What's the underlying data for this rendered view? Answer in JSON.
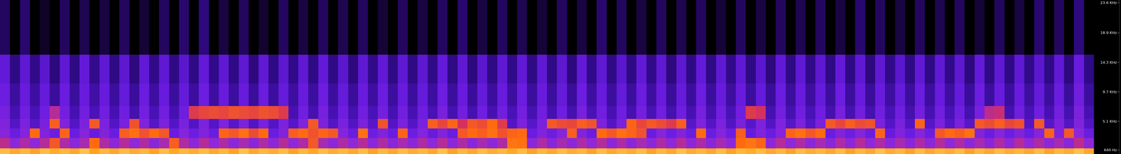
{
  "chart_data": {
    "type": "spectrogram",
    "tick_labels": "y",
    "ylim": [
      0,
      24000
    ],
    "yticks": [
      {
        "value": 23600,
        "label": "23.6 KHz"
      },
      {
        "value": 18900,
        "label": "18.9 KHz"
      },
      {
        "value": 14300,
        "label": "14.3 KHz"
      },
      {
        "value": 9700,
        "label": "9.7 KHz"
      },
      {
        "value": 5100,
        "label": "5.1 KHz"
      },
      {
        "value": 640,
        "label": "640 Hz"
      }
    ],
    "zlim": [
      -120,
      0
    ],
    "y_bins": [
      0,
      900,
      2500,
      4000,
      5500,
      7500,
      11000,
      15500,
      24000
    ],
    "cells": [
      [
        -15,
        -19,
        -16,
        -20,
        -15,
        -18,
        -16,
        -19,
        -14,
        -20,
        -16,
        -19,
        -15,
        -18,
        -16,
        -20,
        -15,
        -19,
        -16,
        -18,
        -15,
        -19,
        -16,
        -20,
        -14,
        -19,
        -16,
        -18,
        -15,
        -20,
        -16,
        -19,
        -15,
        -18,
        -16,
        -19,
        -15,
        -20,
        -16,
        -19,
        -15,
        -18,
        -16,
        -19,
        -14,
        -20,
        -16,
        -19,
        -15,
        -18,
        -16,
        -19,
        -15,
        -20,
        -16,
        -19,
        -15,
        -18,
        -16,
        -20,
        -15,
        -19,
        -16,
        -18,
        -15,
        -20,
        -16,
        -19,
        -14,
        -18,
        -16,
        -19,
        -15,
        -20,
        -16,
        -18,
        -15,
        -19,
        -16,
        -20,
        -15,
        -18,
        -16,
        -19,
        -15,
        -20,
        -16,
        -19,
        -14,
        -18,
        -16,
        -20,
        -15,
        -19,
        -16,
        -18,
        -15,
        -20,
        -16,
        -19,
        -15,
        -18,
        -16,
        -19,
        -15,
        -20,
        -16,
        -18,
        -14,
        -19
      ],
      [
        -44,
        -52,
        -46,
        -51,
        -45,
        -33,
        -46,
        -52,
        -47,
        -30,
        -46,
        -52,
        -45,
        -51,
        -46,
        -53,
        -47,
        -32,
        -46,
        -52,
        -45,
        -51,
        -46,
        -52,
        -47,
        -53,
        -46,
        -52,
        -45,
        -51,
        -46,
        -33,
        -47,
        -52,
        -46,
        -51,
        -45,
        -52,
        -46,
        -53,
        -47,
        -52,
        -46,
        -51,
        -45,
        -52,
        -46,
        -53,
        -47,
        -52,
        -46,
        -28,
        -29,
        -52,
        -46,
        -53,
        -47,
        -52,
        -46,
        -51,
        -45,
        -52,
        -46,
        -53,
        -47,
        -52,
        -46,
        -51,
        -45,
        -52,
        -46,
        -53,
        -47,
        -52,
        -30,
        -28,
        -31,
        -52,
        -45,
        -51,
        -46,
        -52,
        -47,
        -53,
        -46,
        -52,
        -45,
        -51,
        -46,
        -52,
        -47,
        -53,
        -46,
        -52,
        -45,
        -51,
        -46,
        -52,
        -47,
        -53,
        -46,
        -52,
        -45,
        -51,
        -46,
        -52,
        -47,
        -53,
        -44,
        -52
      ],
      [
        -54,
        -65,
        -55,
        -30,
        -56,
        -64,
        -31,
        -65,
        -55,
        -66,
        -56,
        -65,
        -32,
        -29,
        -34,
        -30,
        -33,
        -65,
        -55,
        -64,
        -56,
        -65,
        -31,
        -33,
        -29,
        -35,
        -30,
        -65,
        -56,
        -32,
        -30,
        -34,
        -31,
        -33,
        -55,
        -65,
        -29,
        -64,
        -56,
        -65,
        -31,
        -64,
        -55,
        -66,
        -56,
        -65,
        -33,
        -30,
        -32,
        -29,
        -34,
        -31,
        -30,
        -65,
        -56,
        -64,
        -55,
        -32,
        -56,
        -65,
        -30,
        -33,
        -29,
        -31,
        -34,
        -65,
        -55,
        -64,
        -56,
        -65,
        -30,
        -65,
        -55,
        -64,
        -32,
        -66,
        -56,
        -65,
        -55,
        -31,
        -29,
        -33,
        -30,
        -65,
        -56,
        -64,
        -55,
        -65,
        -31,
        -66,
        -56,
        -65,
        -55,
        -64,
        -33,
        -30,
        -32,
        -29,
        -56,
        -65,
        -55,
        -64,
        -56,
        -65,
        -55,
        -31,
        -56,
        -33,
        -52,
        -65
      ],
      [
        -56,
        -75,
        -58,
        -74,
        -59,
        -32,
        -57,
        -75,
        -58,
        -33,
        -58,
        -75,
        -59,
        -34,
        -57,
        -74,
        -58,
        -75,
        -59,
        -76,
        -58,
        -75,
        -57,
        -74,
        -58,
        -76,
        -59,
        -75,
        -58,
        -74,
        -57,
        -33,
        -58,
        -75,
        -59,
        -76,
        -58,
        -74,
        -34,
        -75,
        -58,
        -75,
        -59,
        -32,
        -36,
        -31,
        -40,
        -33,
        -35,
        -30,
        -38,
        -75,
        -58,
        -74,
        -59,
        -33,
        -35,
        -36,
        -32,
        -34,
        -58,
        -75,
        -59,
        -31,
        -36,
        -33,
        -35,
        -38,
        -32,
        -74,
        -57,
        -75,
        -58,
        -76,
        -59,
        -74,
        -58,
        -75,
        -57,
        -74,
        -58,
        -75,
        -59,
        -33,
        -36,
        -32,
        -35,
        -34,
        -58,
        -75,
        -59,
        -76,
        -31,
        -74,
        -58,
        -75,
        -59,
        -74,
        -33,
        -35,
        -32,
        -36,
        -34,
        -75,
        -33,
        -74,
        -58,
        -75,
        -56,
        -76
      ],
      [
        -60,
        -82,
        -62,
        -81,
        -63,
        -45,
        -61,
        -82,
        -62,
        -80,
        -62,
        -82,
        -63,
        -83,
        -61,
        -81,
        -62,
        -82,
        -63,
        -38,
        -36,
        -35,
        -36,
        -34,
        -35,
        -36,
        -34,
        -35,
        -38,
        -82,
        -62,
        -82,
        -60,
        -82,
        -63,
        -83,
        -62,
        -81,
        -61,
        -82,
        -62,
        -82,
        -63,
        -81,
        -60,
        -82,
        -62,
        -83,
        -63,
        -82,
        -62,
        -81,
        -61,
        -82,
        -62,
        -82,
        -63,
        -83,
        -60,
        -81,
        -62,
        -82,
        -63,
        -82,
        -61,
        -81,
        -62,
        -83,
        -63,
        -82,
        -60,
        -82,
        -62,
        -81,
        -62,
        -38,
        -40,
        -83,
        -61,
        -82,
        -62,
        -81,
        -63,
        -82,
        -60,
        -82,
        -62,
        -83,
        -62,
        -81,
        -63,
        -82,
        -61,
        -82,
        -62,
        -81,
        -63,
        -83,
        -60,
        -44,
        -42,
        -82,
        -62,
        -81,
        -63,
        -82,
        -61,
        -83,
        -58,
        -82
      ],
      [
        -64,
        -88,
        -66,
        -87,
        -67,
        -89,
        -65,
        -88,
        -66,
        -86,
        -66,
        -88,
        -67,
        -89,
        -65,
        -87,
        -66,
        -88,
        -67,
        -88,
        -64,
        -87,
        -66,
        -88,
        -66,
        -89,
        -65,
        -88,
        -67,
        -87,
        -66,
        -88,
        -64,
        -88,
        -67,
        -89,
        -66,
        -87,
        -65,
        -88,
        -66,
        -88,
        -67,
        -87,
        -64,
        -88,
        -66,
        -89,
        -67,
        -88,
        -66,
        -87,
        -65,
        -88,
        -66,
        -88,
        -67,
        -89,
        -64,
        -87,
        -66,
        -88,
        -67,
        -88,
        -65,
        -87,
        -66,
        -89,
        -67,
        -88,
        -64,
        -88,
        -66,
        -87,
        -66,
        -88,
        -67,
        -89,
        -65,
        -88,
        -66,
        -87,
        -67,
        -88,
        -64,
        -88,
        -66,
        -89,
        -66,
        -87,
        -67,
        -88,
        -65,
        -88,
        -66,
        -87,
        -67,
        -89,
        -64,
        -88,
        -66,
        -88,
        -66,
        -87,
        -67,
        -88,
        -65,
        -89,
        -62,
        -88
      ],
      [
        -68,
        -95,
        -70,
        -94,
        -72,
        -96,
        -70,
        -95,
        -68,
        -93,
        -70,
        -95,
        -71,
        -96,
        -69,
        -94,
        -70,
        -95,
        -72,
        -95,
        -68,
        -94,
        -70,
        -95,
        -70,
        -96,
        -69,
        -95,
        -71,
        -94,
        -70,
        -95,
        -68,
        -95,
        -72,
        -96,
        -70,
        -94,
        -69,
        -95,
        -70,
        -95,
        -71,
        -94,
        -68,
        -95,
        -70,
        -96,
        -72,
        -95,
        -70,
        -94,
        -69,
        -95,
        -70,
        -95,
        -71,
        -96,
        -68,
        -94,
        -70,
        -95,
        -72,
        -95,
        -69,
        -94,
        -70,
        -96,
        -71,
        -95,
        -68,
        -95,
        -70,
        -94,
        -70,
        -95,
        -72,
        -96,
        -69,
        -95,
        -70,
        -94,
        -71,
        -95,
        -68,
        -95,
        -70,
        -96,
        -70,
        -94,
        -72,
        -95,
        -69,
        -95,
        -70,
        -94,
        -71,
        -96,
        -68,
        -95,
        -70,
        -95,
        -70,
        -94,
        -72,
        -95,
        -69,
        -96,
        -66,
        -95
      ],
      [
        -100,
        -120,
        -98,
        -120,
        -110,
        -120,
        -100,
        -120,
        -102,
        -120,
        -104,
        -120,
        -100,
        -120,
        -106,
        -120,
        -100,
        -120,
        -98,
        -120,
        -96,
        -120,
        -104,
        -120,
        -100,
        -120,
        -108,
        -120,
        -100,
        -120,
        -104,
        -120,
        -100,
        -120,
        -102,
        -120,
        -100,
        -120,
        -106,
        -120,
        -100,
        -120,
        -104,
        -120,
        -100,
        -120,
        -98,
        -120,
        -104,
        -120,
        -100,
        -120,
        -102,
        -120,
        -106,
        -120,
        -100,
        -120,
        -104,
        -120,
        -98,
        -120,
        -100,
        -120,
        -104,
        -120,
        -100,
        -120,
        -102,
        -120,
        -100,
        -120,
        -106,
        -120,
        -100,
        -120,
        -104,
        -120,
        -100,
        -120,
        -102,
        -120,
        -100,
        -120,
        -104,
        -120,
        -98,
        -120,
        -100,
        -120,
        -104,
        -120,
        -100,
        -120,
        -102,
        -120,
        -100,
        -120,
        -106,
        -120,
        -100,
        -120,
        -104,
        -120,
        -98,
        -120,
        -100,
        -120,
        -96,
        -120
      ]
    ]
  }
}
